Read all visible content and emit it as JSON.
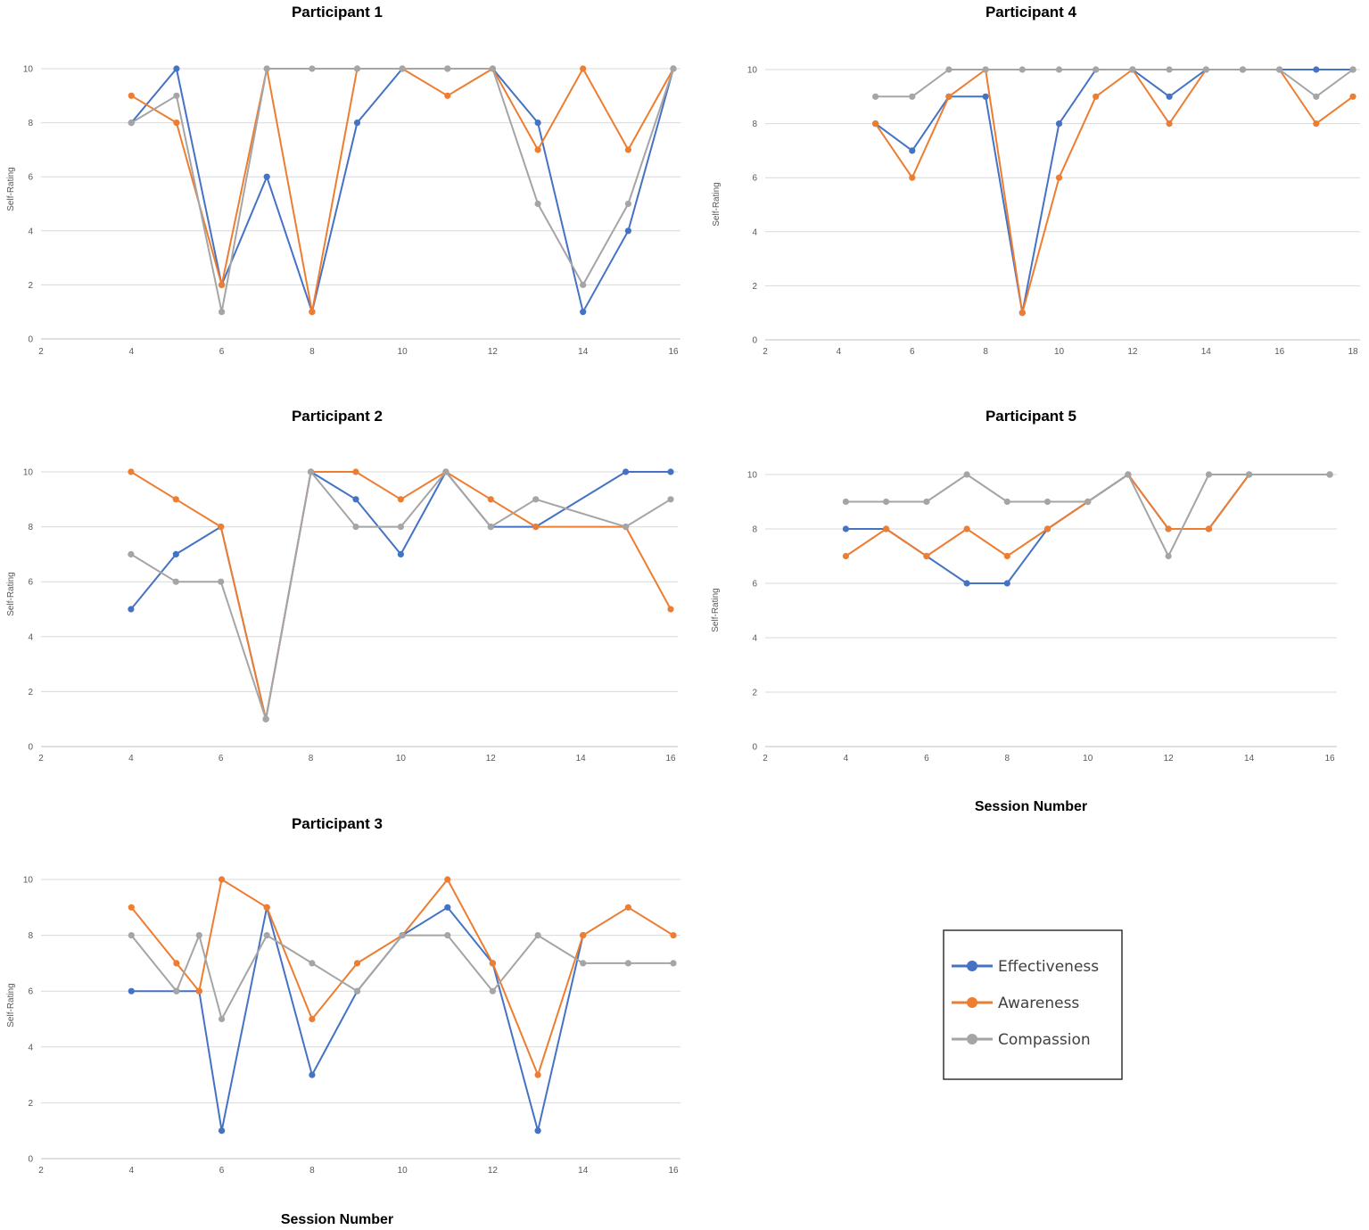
{
  "axis_label_x": "Session Number",
  "legend": [
    {
      "name": "Effectiveness",
      "color": "#4472C4"
    },
    {
      "name": "Awareness",
      "color": "#ED7D31"
    },
    {
      "name": "Compassion",
      "color": "#A5A5A5"
    }
  ],
  "chart_data": [
    {
      "type": "line",
      "title": "Participant 1",
      "xlabel": "",
      "ylabel": "Self-Rating",
      "xlim": [
        2,
        16
      ],
      "ylim": [
        0,
        10
      ],
      "xticks": [
        2,
        4,
        6,
        8,
        10,
        12,
        14,
        16
      ],
      "yticks": [
        0,
        2,
        4,
        6,
        8,
        10
      ],
      "x": [
        4,
        5,
        6,
        7,
        8,
        9,
        10,
        11,
        12,
        13,
        14,
        15,
        16
      ],
      "series": [
        {
          "name": "Effectiveness",
          "color": "#4472C4",
          "values": [
            8,
            10,
            2,
            6,
            1,
            8,
            10,
            10,
            10,
            8,
            1,
            4,
            10
          ]
        },
        {
          "name": "Awareness",
          "color": "#ED7D31",
          "values": [
            9,
            8,
            2,
            10,
            1,
            10,
            10,
            9,
            10,
            7,
            10,
            7,
            10
          ]
        },
        {
          "name": "Compassion",
          "color": "#A5A5A5",
          "values": [
            8,
            9,
            1,
            10,
            10,
            10,
            10,
            10,
            10,
            5,
            2,
            5,
            10
          ]
        }
      ]
    },
    {
      "type": "line",
      "title": "Participant 4",
      "xlabel": "",
      "ylabel": "Self-Rating",
      "xlim": [
        2,
        18
      ],
      "ylim": [
        0,
        10
      ],
      "xticks": [
        2,
        4,
        6,
        8,
        10,
        12,
        14,
        16,
        18
      ],
      "yticks": [
        0,
        2,
        4,
        6,
        8,
        10
      ],
      "x": [
        5,
        6,
        7,
        8,
        9,
        10,
        11,
        12,
        13,
        14,
        15,
        16,
        17,
        18
      ],
      "series": [
        {
          "name": "Effectiveness",
          "color": "#4472C4",
          "values": [
            8,
            7,
            9,
            9,
            1,
            8,
            10,
            10,
            9,
            10,
            10,
            10,
            10,
            10
          ]
        },
        {
          "name": "Awareness",
          "color": "#ED7D31",
          "values": [
            8,
            6,
            9,
            10,
            1,
            6,
            9,
            10,
            8,
            10,
            10,
            10,
            8,
            9
          ]
        },
        {
          "name": "Compassion",
          "color": "#A5A5A5",
          "values": [
            9,
            9,
            10,
            10,
            10,
            10,
            10,
            10,
            10,
            10,
            10,
            10,
            9,
            10
          ]
        }
      ]
    },
    {
      "type": "line",
      "title": "Participant 2",
      "xlabel": "",
      "ylabel": "Self-Rating",
      "xlim": [
        2,
        16
      ],
      "ylim": [
        0,
        10
      ],
      "xticks": [
        2,
        4,
        6,
        8,
        10,
        12,
        14,
        16
      ],
      "yticks": [
        0,
        2,
        4,
        6,
        8,
        10
      ],
      "x": [
        4,
        5,
        6,
        7,
        8,
        9,
        10,
        11,
        12,
        13,
        15,
        16
      ],
      "series": [
        {
          "name": "Effectiveness",
          "color": "#4472C4",
          "values": [
            5,
            7,
            8,
            1,
            10,
            9,
            7,
            10,
            8,
            8,
            10,
            10
          ]
        },
        {
          "name": "Awareness",
          "color": "#ED7D31",
          "values": [
            10,
            9,
            8,
            1,
            10,
            10,
            9,
            10,
            9,
            8,
            8,
            5
          ]
        },
        {
          "name": "Compassion",
          "color": "#A5A5A5",
          "values": [
            7,
            6,
            6,
            1,
            10,
            8,
            8,
            10,
            8,
            9,
            8,
            9
          ]
        }
      ]
    },
    {
      "type": "line",
      "title": "Participant 5",
      "xlabel": "Session Number",
      "ylabel": "Self-Rating",
      "xlim": [
        2,
        16
      ],
      "ylim": [
        0,
        10
      ],
      "xticks": [
        2,
        4,
        6,
        8,
        10,
        12,
        14,
        16
      ],
      "yticks": [
        0,
        2,
        4,
        6,
        8,
        10
      ],
      "x": [
        4,
        5,
        6,
        7,
        8,
        9,
        10,
        11,
        12,
        13,
        14,
        16
      ],
      "series": [
        {
          "name": "Effectiveness",
          "color": "#4472C4",
          "values": [
            8,
            8,
            7,
            6,
            6,
            8,
            9,
            10,
            8,
            8,
            10,
            10
          ]
        },
        {
          "name": "Awareness",
          "color": "#ED7D31",
          "values": [
            7,
            8,
            7,
            8,
            7,
            8,
            9,
            10,
            8,
            8,
            10,
            10
          ]
        },
        {
          "name": "Compassion",
          "color": "#A5A5A5",
          "values": [
            9,
            9,
            9,
            10,
            9,
            9,
            9,
            10,
            7,
            10,
            10,
            10
          ]
        }
      ]
    },
    {
      "type": "line",
      "title": "Participant 3",
      "xlabel": "Session Number",
      "ylabel": "Self-Rating",
      "xlim": [
        2,
        16
      ],
      "ylim": [
        0,
        10
      ],
      "xticks": [
        2,
        4,
        6,
        8,
        10,
        12,
        14,
        16
      ],
      "yticks": [
        0,
        2,
        4,
        6,
        8,
        10
      ],
      "x": [
        4,
        5,
        5.5,
        6,
        7,
        8,
        9,
        10,
        11,
        12,
        13,
        14,
        15,
        16
      ],
      "series": [
        {
          "name": "Effectiveness",
          "color": "#4472C4",
          "values": [
            6,
            6,
            6,
            1,
            9,
            3,
            6,
            8,
            9,
            7,
            1,
            8,
            null,
            null
          ]
        },
        {
          "name": "Awareness",
          "color": "#ED7D31",
          "values": [
            9,
            7,
            6,
            10,
            9,
            5,
            7,
            8,
            10,
            7,
            3,
            8,
            9,
            8
          ]
        },
        {
          "name": "Compassion",
          "color": "#A5A5A5",
          "values": [
            8,
            6,
            8,
            5,
            8,
            7,
            6,
            8,
            8,
            6,
            8,
            7,
            7,
            7
          ]
        }
      ]
    }
  ]
}
